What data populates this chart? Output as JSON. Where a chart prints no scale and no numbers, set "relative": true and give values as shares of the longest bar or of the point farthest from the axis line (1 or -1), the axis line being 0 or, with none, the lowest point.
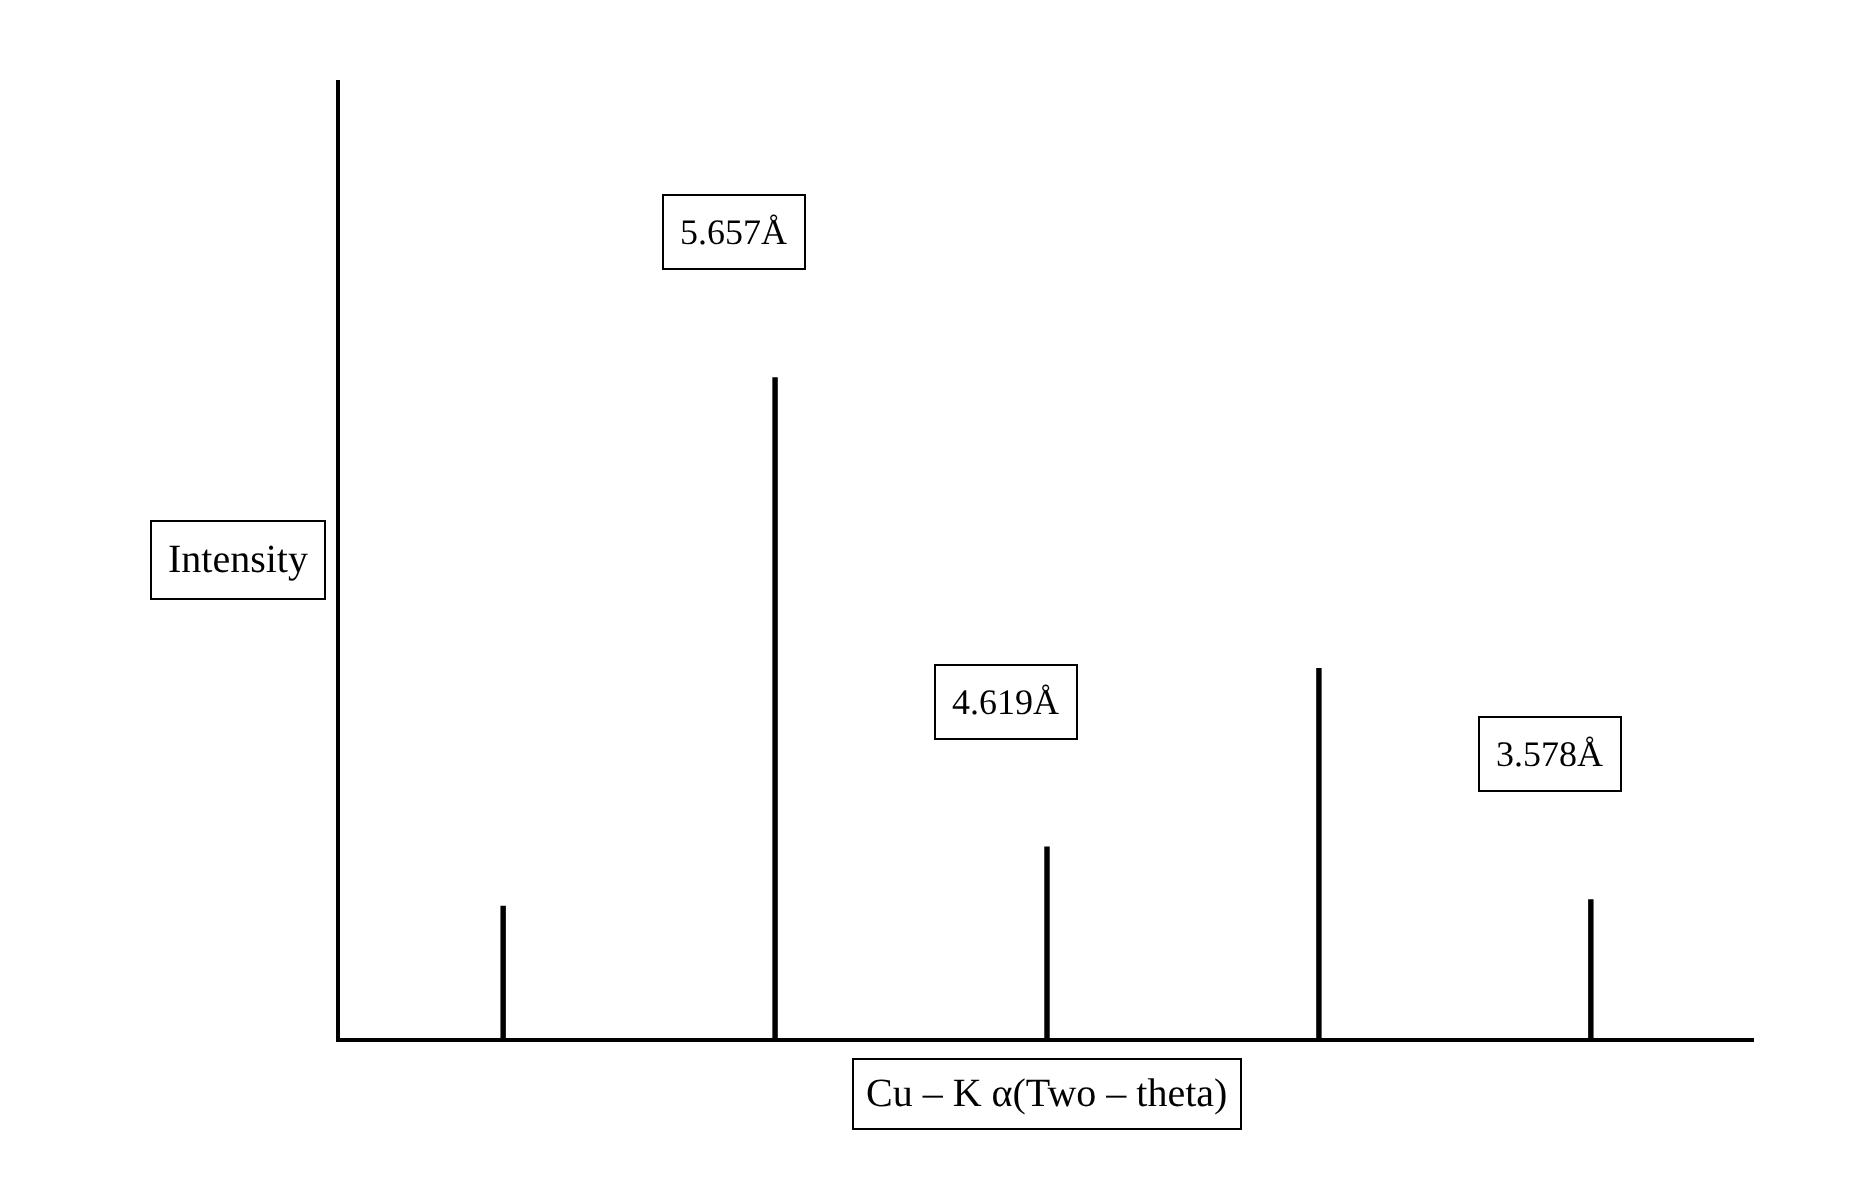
{
  "chart_data": {
    "type": "bar",
    "relative": true,
    "categories": [
      null,
      null,
      null,
      null,
      null
    ],
    "values": [
      0.2,
      1,
      0.29,
      0.56,
      0.21
    ],
    "color": "#000000",
    "xlabel": "Cu – K α(Two – theta)",
    "ylabel": "Intensity",
    "annotations": [
      "5.657Å",
      "4.619Å",
      "3.578Å"
    ],
    "legend": false
  }
}
